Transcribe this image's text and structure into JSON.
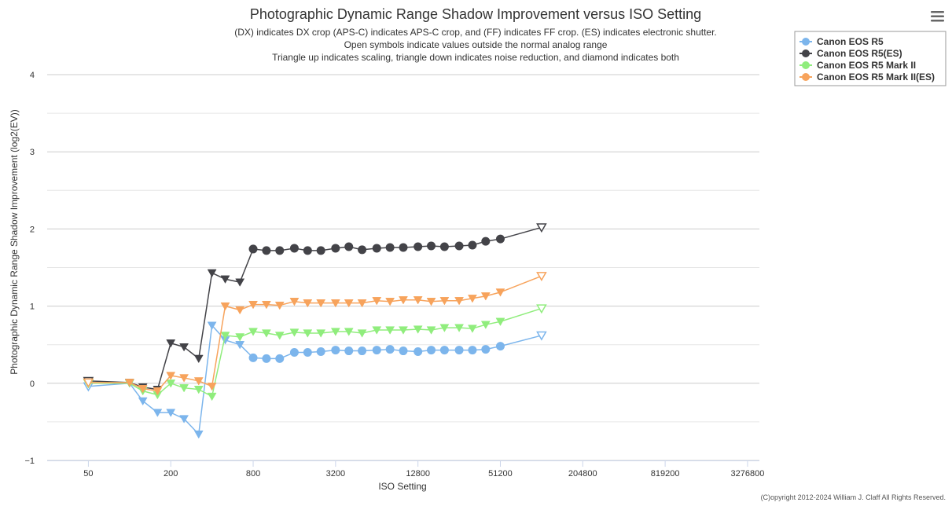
{
  "chart_data": {
    "type": "line",
    "title": "Photographic Dynamic Range Shadow Improvement versus ISO Setting",
    "subtitles": [
      "(DX) indicates DX crop (APS-C) indicates APS-C crop, and (FF) indicates FF crop. (ES) indicates electronic shutter.",
      "Open symbols indicate values outside the normal analog range",
      "Triangle up indicates scaling, triangle down indicates noise reduction, and diamond indicates both"
    ],
    "xlabel": "ISO Setting",
    "ylabel": "Photographic Dynamic Range Shadow Improvement (log2(EV))",
    "x_scale": "log2",
    "xlim": [
      25,
      4000000
    ],
    "ylim": [
      -1,
      4
    ],
    "x_ticks": [
      50,
      200,
      800,
      3200,
      12800,
      51200,
      204800,
      819200,
      3276800
    ],
    "y_ticks": [
      -1,
      0,
      1,
      2,
      3,
      4
    ],
    "legend_position": "top-right",
    "credits": "(C)opyright 2012-2024 William J. Claff All Rights Reserved.",
    "series": [
      {
        "name": "Canon EOS R5",
        "color": "#7cb5ec",
        "points": [
          {
            "x": 50,
            "y": -0.04,
            "m": "tri-down-open"
          },
          {
            "x": 100,
            "y": 0.0,
            "m": "tri-down"
          },
          {
            "x": 125,
            "y": -0.23,
            "m": "tri-down"
          },
          {
            "x": 160,
            "y": -0.38,
            "m": "tri-down"
          },
          {
            "x": 200,
            "y": -0.38,
            "m": "tri-down"
          },
          {
            "x": 250,
            "y": -0.46,
            "m": "tri-down"
          },
          {
            "x": 320,
            "y": -0.66,
            "m": "tri-down"
          },
          {
            "x": 400,
            "y": 0.75,
            "m": "tri-down"
          },
          {
            "x": 500,
            "y": 0.56,
            "m": "tri-down"
          },
          {
            "x": 640,
            "y": 0.5,
            "m": "tri-down"
          },
          {
            "x": 800,
            "y": 0.33,
            "m": "circle"
          },
          {
            "x": 1000,
            "y": 0.32,
            "m": "circle"
          },
          {
            "x": 1250,
            "y": 0.32,
            "m": "circle"
          },
          {
            "x": 1600,
            "y": 0.4,
            "m": "circle"
          },
          {
            "x": 2000,
            "y": 0.4,
            "m": "circle"
          },
          {
            "x": 2500,
            "y": 0.41,
            "m": "circle"
          },
          {
            "x": 3200,
            "y": 0.43,
            "m": "circle"
          },
          {
            "x": 4000,
            "y": 0.42,
            "m": "circle"
          },
          {
            "x": 5000,
            "y": 0.42,
            "m": "circle"
          },
          {
            "x": 6400,
            "y": 0.43,
            "m": "circle"
          },
          {
            "x": 8000,
            "y": 0.44,
            "m": "circle"
          },
          {
            "x": 10000,
            "y": 0.42,
            "m": "circle"
          },
          {
            "x": 12800,
            "y": 0.41,
            "m": "circle"
          },
          {
            "x": 16000,
            "y": 0.43,
            "m": "circle"
          },
          {
            "x": 20000,
            "y": 0.43,
            "m": "circle"
          },
          {
            "x": 25600,
            "y": 0.43,
            "m": "circle"
          },
          {
            "x": 32000,
            "y": 0.43,
            "m": "circle"
          },
          {
            "x": 40000,
            "y": 0.44,
            "m": "circle"
          },
          {
            "x": 51200,
            "y": 0.48,
            "m": "circle"
          },
          {
            "x": 102400,
            "y": 0.62,
            "m": "tri-down-open"
          }
        ]
      },
      {
        "name": "Canon EOS R5(ES)",
        "color": "#434348",
        "points": [
          {
            "x": 50,
            "y": 0.03,
            "m": "tri-down-open"
          },
          {
            "x": 100,
            "y": 0.01,
            "m": "tri-down"
          },
          {
            "x": 125,
            "y": -0.05,
            "m": "tri-down"
          },
          {
            "x": 160,
            "y": -0.08,
            "m": "tri-down"
          },
          {
            "x": 200,
            "y": 0.52,
            "m": "tri-down"
          },
          {
            "x": 250,
            "y": 0.47,
            "m": "tri-down"
          },
          {
            "x": 320,
            "y": 0.32,
            "m": "tri-down"
          },
          {
            "x": 400,
            "y": 1.43,
            "m": "tri-down"
          },
          {
            "x": 500,
            "y": 1.35,
            "m": "tri-down"
          },
          {
            "x": 640,
            "y": 1.31,
            "m": "tri-down"
          },
          {
            "x": 800,
            "y": 1.74,
            "m": "circle"
          },
          {
            "x": 1000,
            "y": 1.72,
            "m": "circle"
          },
          {
            "x": 1250,
            "y": 1.72,
            "m": "circle"
          },
          {
            "x": 1600,
            "y": 1.75,
            "m": "circle"
          },
          {
            "x": 2000,
            "y": 1.72,
            "m": "circle"
          },
          {
            "x": 2500,
            "y": 1.72,
            "m": "circle"
          },
          {
            "x": 3200,
            "y": 1.75,
            "m": "circle"
          },
          {
            "x": 4000,
            "y": 1.77,
            "m": "circle"
          },
          {
            "x": 5000,
            "y": 1.73,
            "m": "circle"
          },
          {
            "x": 6400,
            "y": 1.75,
            "m": "circle"
          },
          {
            "x": 8000,
            "y": 1.76,
            "m": "circle"
          },
          {
            "x": 10000,
            "y": 1.76,
            "m": "circle"
          },
          {
            "x": 12800,
            "y": 1.77,
            "m": "circle"
          },
          {
            "x": 16000,
            "y": 1.78,
            "m": "circle"
          },
          {
            "x": 20000,
            "y": 1.77,
            "m": "circle"
          },
          {
            "x": 25600,
            "y": 1.78,
            "m": "circle"
          },
          {
            "x": 32000,
            "y": 1.79,
            "m": "circle"
          },
          {
            "x": 40000,
            "y": 1.84,
            "m": "circle"
          },
          {
            "x": 51200,
            "y": 1.87,
            "m": "circle"
          },
          {
            "x": 102400,
            "y": 2.02,
            "m": "tri-down-open"
          }
        ]
      },
      {
        "name": "Canon EOS R5 Mark II",
        "color": "#90ed7d",
        "points": [
          {
            "x": 50,
            "y": 0.0,
            "m": "tri-down-open"
          },
          {
            "x": 100,
            "y": 0.0,
            "m": "tri-down"
          },
          {
            "x": 125,
            "y": -0.1,
            "m": "tri-down"
          },
          {
            "x": 160,
            "y": -0.15,
            "m": "tri-down"
          },
          {
            "x": 200,
            "y": 0.0,
            "m": "tri-down"
          },
          {
            "x": 250,
            "y": -0.06,
            "m": "tri-down"
          },
          {
            "x": 320,
            "y": -0.08,
            "m": "tri-down"
          },
          {
            "x": 400,
            "y": -0.17,
            "m": "tri-down"
          },
          {
            "x": 500,
            "y": 0.62,
            "m": "tri-down"
          },
          {
            "x": 640,
            "y": 0.6,
            "m": "tri-down"
          },
          {
            "x": 800,
            "y": 0.67,
            "m": "tri-down"
          },
          {
            "x": 1000,
            "y": 0.65,
            "m": "tri-down"
          },
          {
            "x": 1250,
            "y": 0.62,
            "m": "tri-down"
          },
          {
            "x": 1600,
            "y": 0.66,
            "m": "tri-down"
          },
          {
            "x": 2000,
            "y": 0.65,
            "m": "tri-down"
          },
          {
            "x": 2500,
            "y": 0.65,
            "m": "tri-down"
          },
          {
            "x": 3200,
            "y": 0.67,
            "m": "tri-down"
          },
          {
            "x": 4000,
            "y": 0.67,
            "m": "tri-down"
          },
          {
            "x": 5000,
            "y": 0.65,
            "m": "tri-down"
          },
          {
            "x": 6400,
            "y": 0.69,
            "m": "tri-down"
          },
          {
            "x": 8000,
            "y": 0.69,
            "m": "tri-down"
          },
          {
            "x": 10000,
            "y": 0.69,
            "m": "tri-down"
          },
          {
            "x": 12800,
            "y": 0.7,
            "m": "tri-down"
          },
          {
            "x": 16000,
            "y": 0.69,
            "m": "tri-down"
          },
          {
            "x": 20000,
            "y": 0.72,
            "m": "tri-down"
          },
          {
            "x": 25600,
            "y": 0.72,
            "m": "tri-down"
          },
          {
            "x": 32000,
            "y": 0.71,
            "m": "tri-down"
          },
          {
            "x": 40000,
            "y": 0.76,
            "m": "tri-down"
          },
          {
            "x": 51200,
            "y": 0.8,
            "m": "tri-down"
          },
          {
            "x": 102400,
            "y": 0.97,
            "m": "tri-down-open"
          }
        ]
      },
      {
        "name": "Canon EOS R5 Mark II(ES)",
        "color": "#f7a35c",
        "points": [
          {
            "x": 50,
            "y": 0.01,
            "m": "tri-down-open"
          },
          {
            "x": 100,
            "y": 0.01,
            "m": "tri-down"
          },
          {
            "x": 125,
            "y": -0.07,
            "m": "tri-down"
          },
          {
            "x": 160,
            "y": -0.1,
            "m": "tri-down"
          },
          {
            "x": 200,
            "y": 0.1,
            "m": "tri-down"
          },
          {
            "x": 250,
            "y": 0.07,
            "m": "tri-down"
          },
          {
            "x": 320,
            "y": 0.03,
            "m": "tri-down"
          },
          {
            "x": 400,
            "y": -0.04,
            "m": "tri-down"
          },
          {
            "x": 500,
            "y": 1.0,
            "m": "tri-down"
          },
          {
            "x": 640,
            "y": 0.95,
            "m": "tri-down"
          },
          {
            "x": 800,
            "y": 1.02,
            "m": "tri-down"
          },
          {
            "x": 1000,
            "y": 1.02,
            "m": "tri-down"
          },
          {
            "x": 1250,
            "y": 1.01,
            "m": "tri-down"
          },
          {
            "x": 1600,
            "y": 1.06,
            "m": "tri-down"
          },
          {
            "x": 2000,
            "y": 1.04,
            "m": "tri-down"
          },
          {
            "x": 2500,
            "y": 1.04,
            "m": "tri-down"
          },
          {
            "x": 3200,
            "y": 1.04,
            "m": "tri-down"
          },
          {
            "x": 4000,
            "y": 1.04,
            "m": "tri-down"
          },
          {
            "x": 5000,
            "y": 1.04,
            "m": "tri-down"
          },
          {
            "x": 6400,
            "y": 1.07,
            "m": "tri-down"
          },
          {
            "x": 8000,
            "y": 1.06,
            "m": "tri-down"
          },
          {
            "x": 10000,
            "y": 1.08,
            "m": "tri-down"
          },
          {
            "x": 12800,
            "y": 1.08,
            "m": "tri-down"
          },
          {
            "x": 16000,
            "y": 1.06,
            "m": "tri-down"
          },
          {
            "x": 20000,
            "y": 1.07,
            "m": "tri-down"
          },
          {
            "x": 25600,
            "y": 1.07,
            "m": "tri-down"
          },
          {
            "x": 32000,
            "y": 1.1,
            "m": "tri-down"
          },
          {
            "x": 40000,
            "y": 1.13,
            "m": "tri-down"
          },
          {
            "x": 51200,
            "y": 1.18,
            "m": "tri-down"
          },
          {
            "x": 102400,
            "y": 1.39,
            "m": "tri-down-open"
          }
        ]
      }
    ]
  },
  "ui": {
    "menu_icon": "hamburger-menu-icon"
  }
}
